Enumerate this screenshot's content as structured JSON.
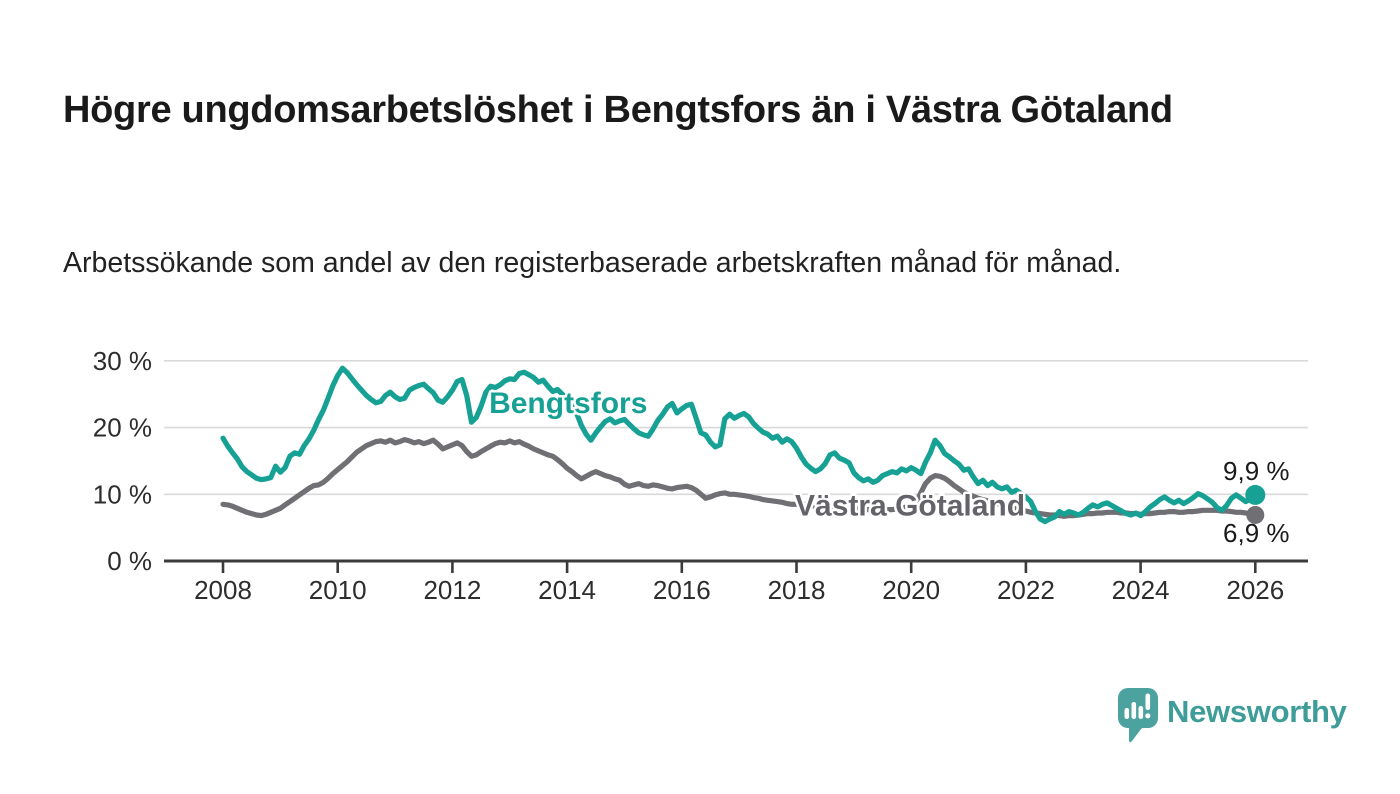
{
  "header": {
    "title": "Högre ungdomsarbetslöshet i Bengtsfors än i Västra Götaland",
    "subtitle": "Arbetssökande som andel av den registerbaserade arbetskraften månad för månad."
  },
  "footer": {
    "brand": "Newsworthy"
  },
  "colors": {
    "bengtsfors": "#17a195",
    "vastra_gotaland": "#706f74",
    "vastra_gotaland_label": "#64636a",
    "axis": "#3b3b3b",
    "grid": "#d9d9d9",
    "tick_text": "#2d2d2d",
    "end_label_text": "#1a1a1a",
    "logo": "#4ba29e",
    "wordmark": "#3f9d99"
  },
  "chart_data": {
    "type": "line",
    "title": "Högre ungdomsarbetslöshet i Bengtsfors än i Västra Götaland",
    "subtitle": "Arbetssökande som andel av den registerbaserade arbetskraften månad för månad.",
    "xlabel": "",
    "ylabel": "",
    "grid": "horizontal",
    "legend_position": "inline-labels",
    "x_start": 2008.0,
    "x_step_months": 1,
    "x_end": 2026.0,
    "ylim": [
      0,
      32
    ],
    "x_ticks": [
      2008,
      2010,
      2012,
      2014,
      2016,
      2018,
      2020,
      2022,
      2024,
      2026
    ],
    "x_tick_labels": [
      "2008",
      "2010",
      "2012",
      "2014",
      "2016",
      "2018",
      "2020",
      "2022",
      "2024",
      "2026"
    ],
    "y_ticks": [
      {
        "value": 0,
        "label": "0 %"
      },
      {
        "value": 10,
        "label": "10 %"
      },
      {
        "value": 20,
        "label": "20 %"
      },
      {
        "value": 30,
        "label": "30 %"
      }
    ],
    "series": [
      {
        "name": "Västra Götaland",
        "slug": "vastra-gotaland",
        "color": "#706f74",
        "label_color": "#64636a",
        "end_label": "6,9 %",
        "end_value": 6.9,
        "label_at": {
          "year": 2019.98,
          "value": 8.5
        },
        "values": [
          8.5,
          8.4,
          8.2,
          7.9,
          7.6,
          7.3,
          7.1,
          6.9,
          6.8,
          7.0,
          7.3,
          7.6,
          7.9,
          8.4,
          8.9,
          9.4,
          9.9,
          10.4,
          10.9,
          11.3,
          11.4,
          11.8,
          12.4,
          13.1,
          13.7,
          14.3,
          14.9,
          15.6,
          16.3,
          16.8,
          17.3,
          17.6,
          17.9,
          18.0,
          17.8,
          18.1,
          17.7,
          17.9,
          18.2,
          18.0,
          17.7,
          17.9,
          17.6,
          17.8,
          18.1,
          17.5,
          16.8,
          17.1,
          17.4,
          17.7,
          17.3,
          16.4,
          15.7,
          15.9,
          16.4,
          16.8,
          17.2,
          17.6,
          17.8,
          17.7,
          18.0,
          17.7,
          17.9,
          17.5,
          17.2,
          16.8,
          16.5,
          16.2,
          15.9,
          15.7,
          15.2,
          14.6,
          13.9,
          13.4,
          12.8,
          12.3,
          12.7,
          13.1,
          13.4,
          13.1,
          12.8,
          12.6,
          12.3,
          12.1,
          11.5,
          11.2,
          11.4,
          11.6,
          11.3,
          11.2,
          11.4,
          11.3,
          11.1,
          10.9,
          10.8,
          11.0,
          11.1,
          11.2,
          11.0,
          10.6,
          10.0,
          9.4,
          9.6,
          9.9,
          10.1,
          10.2,
          10.0,
          10.0,
          9.9,
          9.8,
          9.7,
          9.5,
          9.4,
          9.2,
          9.1,
          9.0,
          8.9,
          8.8,
          8.6,
          8.5,
          8.5,
          8.6,
          8.4,
          8.3,
          8.2,
          8.1,
          8.1,
          8.0,
          8.0,
          7.9,
          7.9,
          7.8,
          7.8,
          7.8,
          7.7,
          7.7,
          7.6,
          7.6,
          7.6,
          7.7,
          7.7,
          7.8,
          7.9,
          8.1,
          8.4,
          8.7,
          10.2,
          11.6,
          12.4,
          12.8,
          12.7,
          12.4,
          11.9,
          11.3,
          10.8,
          10.3,
          10.0,
          9.7,
          9.4,
          9.2,
          9.0,
          8.8,
          8.6,
          8.4,
          8.2,
          8.0,
          7.8,
          7.6,
          7.5,
          7.3,
          7.2,
          7.1,
          7.0,
          6.9,
          6.9,
          6.8,
          6.7,
          6.8,
          6.8,
          6.9,
          7.0,
          7.1,
          7.1,
          7.2,
          7.2,
          7.3,
          7.3,
          7.3,
          7.2,
          7.2,
          7.1,
          7.1,
          7.0,
          7.1,
          7.1,
          7.2,
          7.3,
          7.3,
          7.4,
          7.4,
          7.3,
          7.3,
          7.4,
          7.4,
          7.5,
          7.6,
          7.6,
          7.6,
          7.6,
          7.5,
          7.5,
          7.4,
          7.3,
          7.3,
          7.2,
          7.1,
          6.9
        ]
      },
      {
        "name": "Bengtsfors",
        "slug": "bengtsfors",
        "color": "#17a195",
        "label_color": "#17a195",
        "end_label": "9,9 %",
        "end_value": 9.9,
        "label_at": {
          "year": 2014.02,
          "value": 23.8
        },
        "values": [
          18.4,
          17.2,
          16.2,
          15.3,
          14.1,
          13.4,
          12.9,
          12.4,
          12.2,
          12.3,
          12.5,
          14.2,
          13.3,
          14.0,
          15.7,
          16.2,
          16.0,
          17.3,
          18.3,
          19.6,
          21.2,
          22.6,
          24.4,
          26.3,
          27.8,
          28.9,
          28.2,
          27.3,
          26.4,
          25.6,
          24.8,
          24.2,
          23.7,
          23.9,
          24.8,
          25.3,
          24.6,
          24.2,
          24.4,
          25.6,
          26.0,
          26.3,
          26.5,
          25.8,
          25.2,
          24.1,
          23.8,
          24.6,
          25.6,
          26.9,
          27.2,
          24.8,
          20.8,
          21.5,
          23.2,
          25.3,
          26.2,
          26.0,
          26.4,
          27.0,
          27.3,
          27.2,
          28.1,
          28.3,
          27.9,
          27.5,
          26.8,
          27.1,
          26.2,
          25.4,
          25.7,
          25.0,
          24.3,
          23.6,
          22.1,
          20.3,
          19.0,
          18.1,
          19.2,
          20.1,
          20.9,
          21.3,
          20.7,
          21.0,
          21.2,
          20.5,
          19.8,
          19.2,
          18.9,
          18.7,
          19.8,
          21.1,
          22.0,
          23.1,
          23.6,
          22.2,
          22.8,
          23.3,
          23.5,
          21.4,
          19.2,
          18.9,
          17.8,
          17.1,
          17.4,
          21.3,
          22.0,
          21.4,
          21.8,
          22.1,
          21.6,
          20.6,
          19.9,
          19.3,
          19.0,
          18.4,
          18.7,
          17.8,
          18.3,
          17.9,
          16.9,
          15.6,
          14.5,
          13.9,
          13.4,
          13.8,
          14.6,
          15.9,
          16.2,
          15.4,
          15.1,
          14.7,
          13.2,
          12.5,
          12.0,
          12.3,
          11.8,
          12.1,
          12.8,
          13.1,
          13.4,
          13.2,
          13.8,
          13.5,
          14.0,
          13.6,
          13.1,
          14.8,
          16.2,
          18.1,
          17.3,
          16.1,
          15.6,
          15.0,
          14.5,
          13.6,
          13.8,
          12.6,
          11.6,
          12.1,
          11.3,
          11.8,
          11.1,
          10.8,
          11.1,
          10.3,
          10.6,
          10.1,
          9.6,
          8.9,
          7.4,
          6.3,
          5.9,
          6.3,
          6.6,
          7.4,
          7.0,
          7.4,
          7.2,
          6.9,
          7.3,
          7.9,
          8.4,
          8.1,
          8.5,
          8.7,
          8.3,
          7.9,
          7.5,
          7.1,
          6.9,
          7.2,
          6.8,
          7.4,
          8.1,
          8.6,
          9.2,
          9.6,
          9.1,
          8.7,
          9.1,
          8.6,
          9.0,
          9.5,
          10.1,
          9.8,
          9.3,
          8.8,
          8.0,
          7.6,
          8.3,
          9.4,
          9.9,
          9.4,
          8.9,
          9.3,
          9.9
        ]
      }
    ]
  }
}
